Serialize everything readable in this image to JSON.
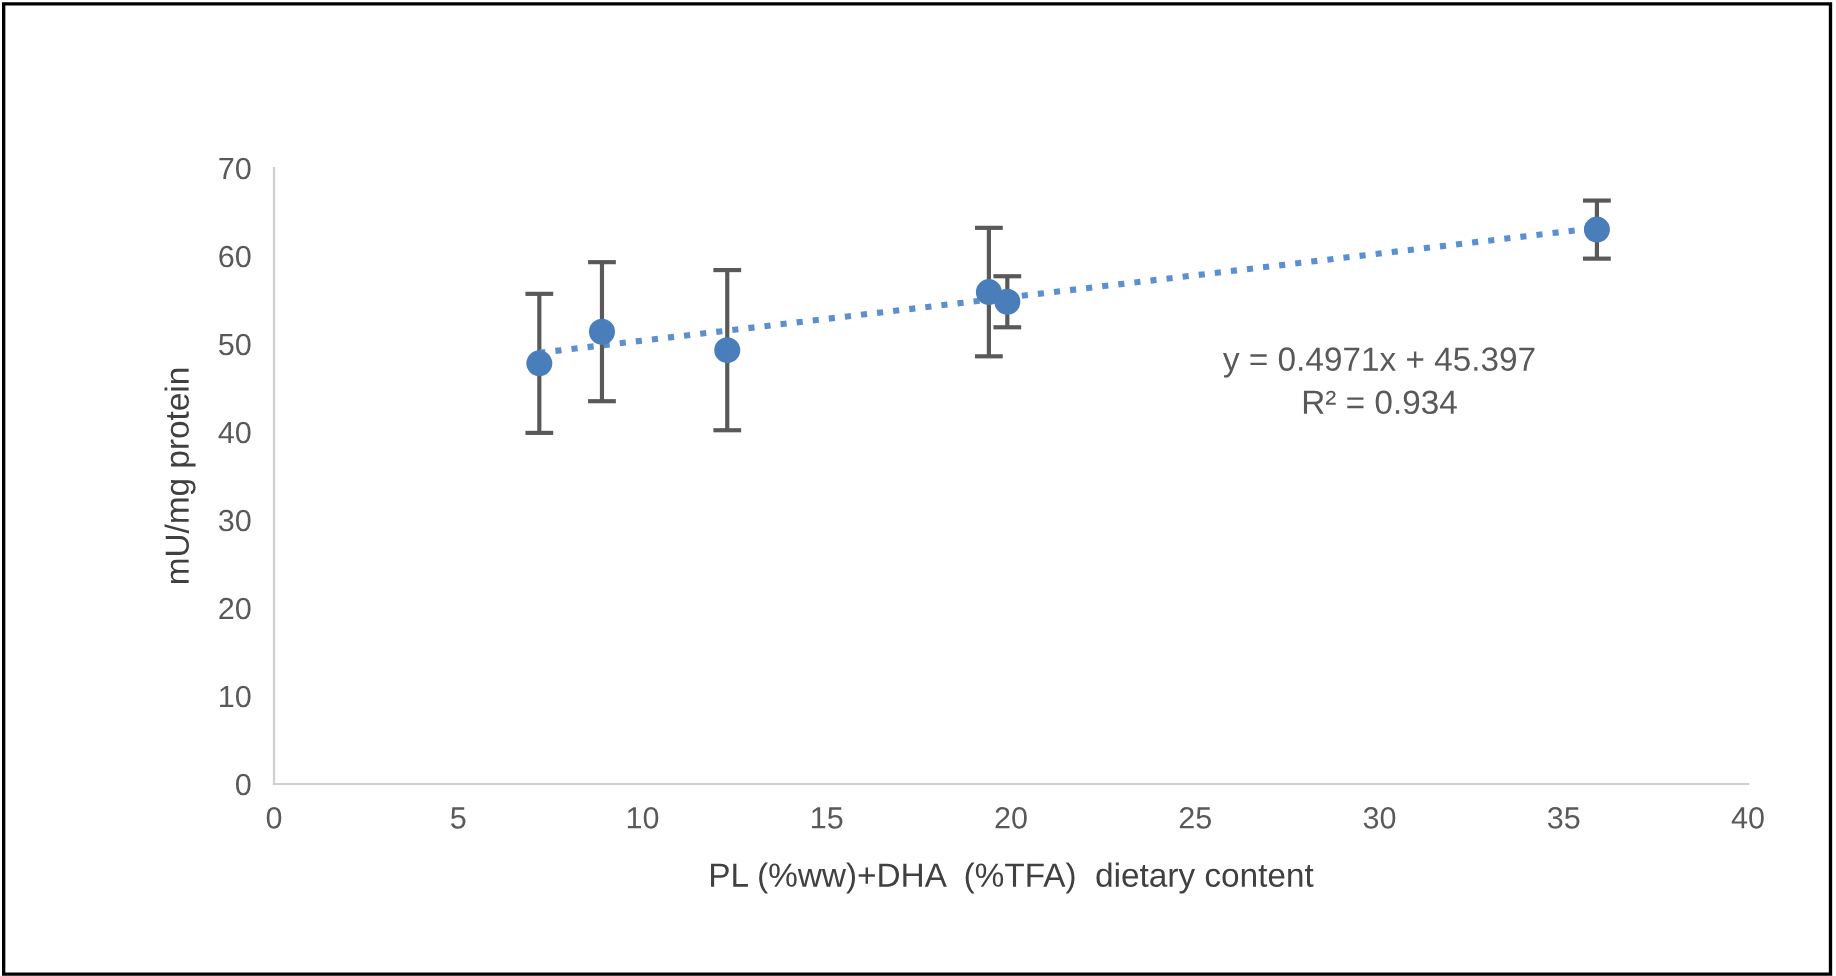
{
  "chart_data": {
    "type": "scatter",
    "xlabel": "PL (%ww)+DHA  (%TFA)  dietary content",
    "ylabel": "mU/mg protein",
    "series": [
      {
        "color": "#4a7ebb",
        "marker": "circle",
        "x": [
          7.2,
          8.9,
          12.3,
          19.4,
          19.9,
          35.9
        ],
        "values": [
          47.8,
          51.4,
          49.3,
          55.9,
          54.8,
          63.0
        ],
        "errors": [
          7.9,
          7.9,
          9.1,
          7.3,
          2.9,
          3.3
        ]
      },
      {
        "type": "line",
        "color": "#5b8fd0",
        "marker": "none",
        "line_style": "dotted",
        "x": [
          7.2,
          35.9
        ],
        "values": [
          49.0,
          63.2
        ]
      }
    ],
    "annotations": [
      "y = 0.4971x + 45.397\nR² = 0.934"
    ],
    "xlim": [
      0,
      40
    ],
    "xticks": [
      0,
      5,
      10,
      15,
      20,
      25,
      30,
      35,
      40
    ],
    "ylim": [
      0,
      70
    ],
    "yticks": [
      0,
      10,
      20,
      30,
      40,
      50,
      60,
      70
    ],
    "grid": false,
    "legend": false
  }
}
